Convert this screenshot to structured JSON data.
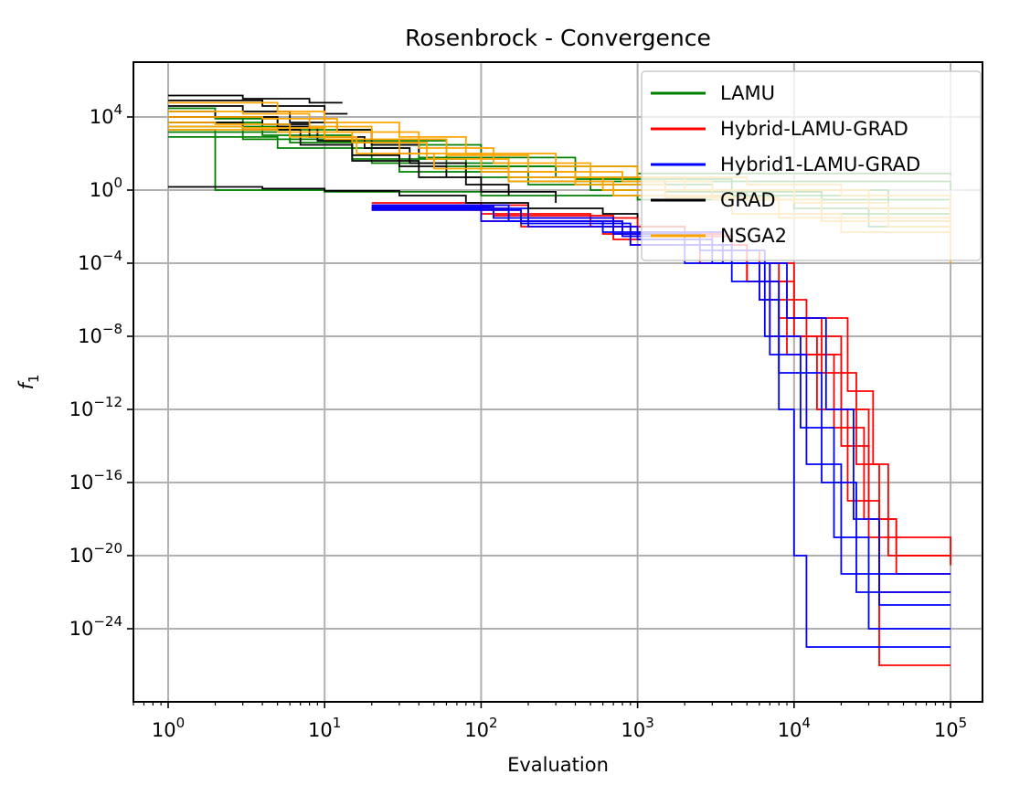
{
  "chart_data": {
    "type": "line",
    "title": "Rosenbrock - Convergence",
    "xlabel": "Evaluation",
    "ylabel": "f",
    "ylabel_subscript": "1",
    "xscale": "log",
    "yscale": "log",
    "xlim": [
      0.6,
      160000
    ],
    "ylim": [
      1e-28,
      10000000.0
    ],
    "grid": true,
    "legend_position": "top-right",
    "x_ticks": [
      {
        "value": 1,
        "base": "10",
        "exp": "0"
      },
      {
        "value": 10,
        "base": "10",
        "exp": "1"
      },
      {
        "value": 100,
        "base": "10",
        "exp": "2"
      },
      {
        "value": 1000,
        "base": "10",
        "exp": "3"
      },
      {
        "value": 10000,
        "base": "10",
        "exp": "4"
      },
      {
        "value": 100000,
        "base": "10",
        "exp": "5"
      }
    ],
    "y_ticks": [
      {
        "value": 10000.0,
        "base": "10",
        "exp": "4"
      },
      {
        "value": 1,
        "base": "10",
        "exp": "0"
      },
      {
        "value": 0.0001,
        "base": "10",
        "exp": "−4"
      },
      {
        "value": 1e-08,
        "base": "10",
        "exp": "−8"
      },
      {
        "value": 1e-12,
        "base": "10",
        "exp": "−12"
      },
      {
        "value": 1e-16,
        "base": "10",
        "exp": "−16"
      },
      {
        "value": 1e-20,
        "base": "10",
        "exp": "−20"
      },
      {
        "value": 1e-24,
        "base": "10",
        "exp": "−24"
      }
    ],
    "series": [
      {
        "name": "LAMU",
        "color": "#008000",
        "lines": [
          [
            [
              1,
              30000
            ],
            [
              2,
              8000
            ],
            [
              5,
              2000
            ],
            [
              20,
              300
            ],
            [
              100,
              20
            ],
            [
              1000,
              8
            ],
            [
              100000,
              6
            ]
          ],
          [
            [
              1,
              10000
            ],
            [
              3,
              3000
            ],
            [
              10,
              500
            ],
            [
              60,
              20
            ],
            [
              300,
              5
            ],
            [
              2000,
              3
            ],
            [
              100000,
              1
            ]
          ],
          [
            [
              1,
              5000
            ],
            [
              4,
              1000
            ],
            [
              15,
              50
            ],
            [
              80,
              5
            ],
            [
              500,
              1
            ],
            [
              5000,
              0.3
            ],
            [
              100000,
              0.05
            ]
          ],
          [
            [
              1,
              2000
            ],
            [
              2,
              1
            ],
            [
              10,
              0.8
            ],
            [
              100,
              0.5
            ],
            [
              1000,
              0.3
            ],
            [
              10000,
              0.1
            ],
            [
              100000,
              0.01
            ]
          ],
          [
            [
              1,
              800
            ],
            [
              5,
              200
            ],
            [
              30,
              10
            ],
            [
              200,
              2
            ],
            [
              3000,
              0.5
            ],
            [
              30000,
              0.01
            ],
            [
              100000,
              0.002
            ]
          ],
          [
            [
              1,
              3000
            ],
            [
              3,
              600
            ],
            [
              20,
              30
            ],
            [
              150,
              3
            ],
            [
              1500,
              0.8
            ],
            [
              15000,
              0.05
            ],
            [
              100000,
              0.0005
            ]
          ],
          [
            [
              1,
              1500
            ],
            [
              6,
              400
            ],
            [
              40,
              60
            ],
            [
              400,
              4
            ],
            [
              4000,
              1
            ],
            [
              40000,
              0.02
            ],
            [
              100000,
              0.0003
            ]
          ]
        ]
      },
      {
        "name": "Hybrid-LAMU-GRAD",
        "color": "#ff0000",
        "lines": [
          [
            [
              20,
              0.2
            ],
            [
              100,
              0.05
            ],
            [
              500,
              0.01
            ],
            [
              2000,
              0.001
            ],
            [
              5000,
              1e-05
            ],
            [
              10000,
              1e-08
            ],
            [
              20000,
              1e-12
            ],
            [
              30000,
              1e-18
            ],
            [
              45000,
              1e-20
            ],
            [
              100000,
              1e-20
            ]
          ],
          [
            [
              20,
              0.1
            ],
            [
              150,
              0.02
            ],
            [
              800,
              0.003
            ],
            [
              4000,
              0.0001
            ],
            [
              8000,
              1e-07
            ],
            [
              15000,
              1e-10
            ],
            [
              25000,
              1e-15
            ],
            [
              35000,
              1e-22
            ],
            [
              100000,
              1e-22
            ]
          ],
          [
            [
              20,
              0.15
            ],
            [
              200,
              0.03
            ],
            [
              1000,
              0.005
            ],
            [
              3000,
              0.0005
            ],
            [
              6000,
              1e-06
            ],
            [
              12000,
              1e-09
            ],
            [
              20000,
              1e-14
            ],
            [
              30000,
              1e-19
            ],
            [
              100000,
              3e-21
            ]
          ],
          [
            [
              20,
              0.12
            ],
            [
              120,
              0.04
            ],
            [
              700,
              0.002
            ],
            [
              2500,
              0.0001
            ],
            [
              7000,
              1e-08
            ],
            [
              14000,
              1e-12
            ],
            [
              22000,
              1e-17
            ],
            [
              35000,
              1e-26
            ],
            [
              100000,
              1e-26
            ]
          ],
          [
            [
              20,
              0.08
            ],
            [
              180,
              0.01
            ],
            [
              900,
              0.001
            ],
            [
              5000,
              1e-05
            ],
            [
              9000,
              1e-09
            ],
            [
              18000,
              1e-13
            ],
            [
              28000,
              1e-18
            ],
            [
              45000,
              1e-21
            ],
            [
              100000,
              1e-21
            ]
          ],
          [
            [
              20,
              0.1
            ],
            [
              100,
              0.02
            ],
            [
              600,
              0.004
            ],
            [
              3500,
              0.0001
            ],
            [
              10000,
              1e-07
            ],
            [
              22000,
              1e-11
            ],
            [
              32000,
              1e-15
            ],
            [
              40000,
              1e-20
            ],
            [
              100000,
              5e-21
            ]
          ]
        ]
      },
      {
        "name": "Hybrid1-LAMU-GRAD",
        "color": "#0000ff",
        "lines": [
          [
            [
              20,
              0.15
            ],
            [
              150,
              0.02
            ],
            [
              800,
              0.003
            ],
            [
              2000,
              0.0001
            ],
            [
              6000,
              1e-06
            ],
            [
              8000,
              1e-12
            ],
            [
              10000,
              1e-20
            ],
            [
              12000,
              1e-25
            ],
            [
              100000,
              1e-25
            ]
          ],
          [
            [
              20,
              0.1
            ],
            [
              200,
              0.01
            ],
            [
              1000,
              0.002
            ],
            [
              3000,
              0.0001
            ],
            [
              7000,
              1e-09
            ],
            [
              12000,
              1e-15
            ],
            [
              20000,
              1e-21
            ],
            [
              100000,
              1e-21
            ]
          ],
          [
            [
              20,
              0.12
            ],
            [
              120,
              0.03
            ],
            [
              700,
              0.004
            ],
            [
              2500,
              0.0005
            ],
            [
              6500,
              1e-08
            ],
            [
              11000,
              1e-13
            ],
            [
              18000,
              1e-19
            ],
            [
              30000,
              1e-24
            ],
            [
              100000,
              1e-24
            ]
          ],
          [
            [
              20,
              0.08
            ],
            [
              180,
              0.015
            ],
            [
              900,
              0.001
            ],
            [
              4000,
              1e-05
            ],
            [
              8000,
              1e-10
            ],
            [
              15000,
              1e-16
            ],
            [
              25000,
              1e-22
            ],
            [
              100000,
              1e-22
            ]
          ],
          [
            [
              20,
              0.1
            ],
            [
              100,
              0.02
            ],
            [
              600,
              0.005
            ],
            [
              3500,
              0.0001
            ],
            [
              9000,
              1e-07
            ],
            [
              16000,
              1e-12
            ],
            [
              24000,
              1e-18
            ],
            [
              35000,
              2e-23
            ],
            [
              100000,
              2e-23
            ]
          ]
        ]
      },
      {
        "name": "GRAD",
        "color": "#000000",
        "lines": [
          [
            [
              1,
              150000
            ],
            [
              3,
              100000
            ],
            [
              8,
              60000
            ],
            [
              13,
              60000
            ]
          ],
          [
            [
              1,
              80000
            ],
            [
              4,
              40000
            ],
            [
              10,
              15000
            ],
            [
              14,
              15000
            ]
          ],
          [
            [
              1,
              40000
            ],
            [
              3,
              20000
            ],
            [
              6,
              5000
            ],
            [
              12,
              2000
            ],
            [
              20,
              300
            ],
            [
              40,
              100
            ]
          ],
          [
            [
              1,
              20000
            ],
            [
              2,
              10000
            ],
            [
              5,
              3000
            ],
            [
              9,
              500
            ],
            [
              15,
              80
            ],
            [
              30,
              20
            ],
            [
              60,
              5
            ]
          ],
          [
            [
              1,
              10000
            ],
            [
              4,
              4000
            ],
            [
              8,
              800
            ],
            [
              18,
              200
            ],
            [
              35,
              30
            ],
            [
              80,
              2
            ],
            [
              150,
              0.5
            ]
          ],
          [
            [
              1,
              1.5
            ],
            [
              4,
              1.2
            ],
            [
              10,
              0.9
            ],
            [
              30,
              0.5
            ],
            [
              80,
              0.2
            ],
            [
              200,
              0.1
            ],
            [
              600,
              0.05
            ],
            [
              1000,
              0.03
            ]
          ],
          [
            [
              1,
              5000
            ],
            [
              3,
              2000
            ],
            [
              7,
              300
            ],
            [
              15,
              40
            ],
            [
              40,
              5
            ],
            [
              100,
              0.8
            ],
            [
              300,
              0.2
            ]
          ]
        ]
      },
      {
        "name": "NSGA2",
        "color": "#ffa500",
        "lines": [
          [
            [
              1,
              60000
            ],
            [
              2,
              60000
            ],
            [
              5,
              20000
            ],
            [
              10,
              5000
            ],
            [
              30,
              800
            ],
            [
              80,
              100
            ],
            [
              300,
              20
            ],
            [
              1000,
              5
            ],
            [
              5000,
              2
            ],
            [
              20000,
              0.5
            ],
            [
              100000,
              0.0003
            ]
          ],
          [
            [
              1,
              20000
            ],
            [
              3,
              15000
            ],
            [
              8,
              3000
            ],
            [
              20,
              600
            ],
            [
              60,
              80
            ],
            [
              200,
              10
            ],
            [
              800,
              3
            ],
            [
              3000,
              1
            ],
            [
              30000,
              0.1
            ],
            [
              100000,
              0.001
            ]
          ],
          [
            [
              1,
              10000
            ],
            [
              4,
              8000
            ],
            [
              12,
              1500
            ],
            [
              40,
              200
            ],
            [
              120,
              30
            ],
            [
              500,
              5
            ],
            [
              2000,
              1
            ],
            [
              10000,
              0.2
            ],
            [
              40000,
              0.01
            ],
            [
              100000,
              0.0001
            ]
          ],
          [
            [
              1,
              5000
            ],
            [
              2,
              4000
            ],
            [
              6,
              800
            ],
            [
              16,
              100
            ],
            [
              50,
              15
            ],
            [
              150,
              3
            ],
            [
              700,
              0.5
            ],
            [
              4000,
              0.05
            ],
            [
              20000,
              0.005
            ],
            [
              100000,
              0.0002
            ]
          ],
          [
            [
              1,
              2000
            ],
            [
              5,
              1500
            ],
            [
              15,
              400
            ],
            [
              45,
              50
            ],
            [
              150,
              5
            ],
            [
              600,
              1
            ],
            [
              3000,
              0.3
            ],
            [
              15000,
              0.02
            ],
            [
              100000,
              0.003
            ]
          ],
          [
            [
              1,
              3000
            ],
            [
              3,
              2500
            ],
            [
              10,
              600
            ],
            [
              30,
              100
            ],
            [
              100,
              10
            ],
            [
              400,
              2
            ],
            [
              1500,
              0.4
            ],
            [
              8000,
              0.03
            ],
            [
              100000,
              0.0005
            ]
          ]
        ]
      }
    ]
  }
}
